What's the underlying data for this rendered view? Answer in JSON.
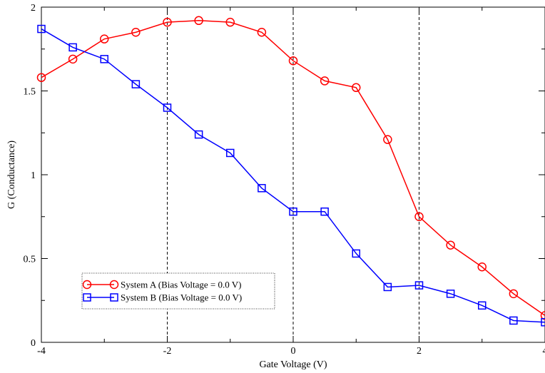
{
  "chart_data": {
    "type": "line",
    "xlabel": "Gate Voltage (V)",
    "ylabel": "G (Conductance)",
    "xlim": [
      -4,
      4
    ],
    "ylim": [
      0,
      2
    ],
    "x_ticks": [
      -4,
      -2,
      0,
      2,
      4
    ],
    "y_ticks": [
      0,
      0.5,
      1,
      1.5,
      2
    ],
    "x_tick_labels": [
      "-4",
      "-2",
      "0",
      "2",
      "4"
    ],
    "y_tick_labels": [
      "0",
      "0.5",
      "1",
      "1.5",
      "2"
    ],
    "vertical_reference_lines": [
      -2,
      0,
      2
    ],
    "grid": false,
    "legend_position": "bottom-left",
    "series": [
      {
        "name": "System A (Bias Voltage = 0.0 V)",
        "color": "#ff0000",
        "marker": "circle",
        "x": [
          -4,
          -3.5,
          -3,
          -2.5,
          -2,
          -1.5,
          -1,
          -0.5,
          0,
          0.5,
          1,
          1.5,
          2,
          2.5,
          3,
          3.5,
          4
        ],
        "y": [
          1.58,
          1.69,
          1.81,
          1.85,
          1.91,
          1.92,
          1.91,
          1.85,
          1.68,
          1.56,
          1.52,
          1.21,
          0.75,
          0.58,
          0.45,
          0.29,
          0.16
        ]
      },
      {
        "name": "System B (Bias Voltage = 0.0 V)",
        "color": "#0000ff",
        "marker": "square",
        "x": [
          -4,
          -3.5,
          -3,
          -2.5,
          -2,
          -1.5,
          -1,
          -0.5,
          0,
          0.5,
          1,
          1.5,
          2,
          2.5,
          3,
          3.5,
          4
        ],
        "y": [
          1.87,
          1.76,
          1.69,
          1.54,
          1.4,
          1.24,
          1.13,
          0.92,
          0.78,
          0.78,
          0.53,
          0.33,
          0.34,
          0.29,
          0.22,
          0.13,
          0.12
        ]
      }
    ]
  }
}
